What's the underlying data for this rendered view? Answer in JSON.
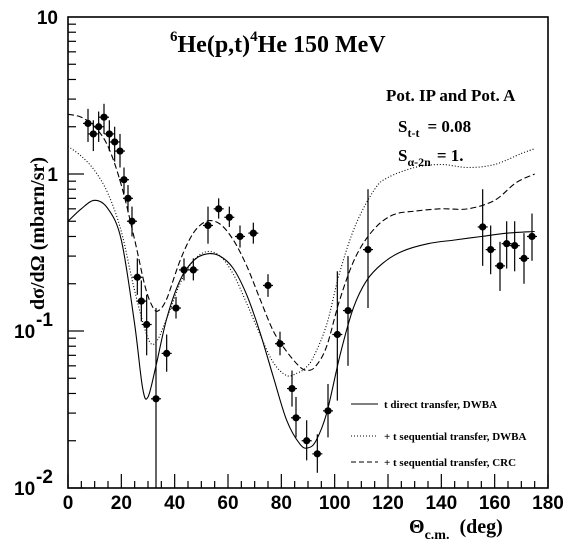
{
  "chart_data": {
    "type": "scatter",
    "title": {
      "pre": "6",
      "post": "He(p,t)",
      "pre2": "4",
      "tail": "He  150 MeV"
    },
    "xlabel": {
      "main": "Θ",
      "sub": "c.m.",
      "units": "(deg)"
    },
    "ylabel": "dσ/dΩ  (mbarn/sr)",
    "xlim": [
      0,
      180
    ],
    "ylim": [
      0.01,
      10
    ],
    "yscale": "log",
    "x_ticks": [
      "0",
      "20",
      "40",
      "60",
      "80",
      "100",
      "120",
      "140",
      "160",
      "180"
    ],
    "y_ticks": [
      {
        "value": 10,
        "main": "10",
        "exp": ""
      },
      {
        "value": 1,
        "main": "1",
        "exp": ""
      },
      {
        "value": 0.1,
        "main": "10",
        "exp": "-1"
      },
      {
        "value": 0.01,
        "main": "10",
        "exp": "-2"
      }
    ],
    "annotations": {
      "line1": "Pot. IP and Pot. A",
      "s1_main": "S",
      "s1_sub": "t-t",
      "s1_val": "=  0.08",
      "s2_main": "S",
      "s2_sub": "α-2n",
      "s2_val": "=  1."
    },
    "legend": [
      {
        "label": "t direct transfer, DWBA",
        "dash": "solid"
      },
      {
        "label": "+ t sequential transfer, DWBA",
        "dash": "dotted"
      },
      {
        "label": "+ t sequential transfer, CRC",
        "dash": "dashed"
      }
    ],
    "legend_position": "lower-right",
    "points": [
      {
        "x": 7.5,
        "y": 2.1,
        "lo": 1.6,
        "hi": 2.6
      },
      {
        "x": 9.5,
        "y": 1.8,
        "lo": 1.4,
        "hi": 2.2
      },
      {
        "x": 11.5,
        "y": 2.0,
        "lo": 1.6,
        "hi": 2.5
      },
      {
        "x": 13.5,
        "y": 2.3,
        "lo": 1.8,
        "hi": 2.8
      },
      {
        "x": 15.5,
        "y": 1.8,
        "lo": 1.4,
        "hi": 2.2
      },
      {
        "x": 17.5,
        "y": 1.6,
        "lo": 1.2,
        "hi": 2.0
      },
      {
        "x": 19.5,
        "y": 1.4,
        "lo": 1.1,
        "hi": 1.8
      },
      {
        "x": 21,
        "y": 0.92,
        "lo": 0.75,
        "hi": 1.1
      },
      {
        "x": 22.5,
        "y": 0.7,
        "lo": 0.57,
        "hi": 0.85
      },
      {
        "x": 24,
        "y": 0.5,
        "lo": 0.4,
        "hi": 0.62
      },
      {
        "x": 26,
        "y": 0.22,
        "lo": 0.17,
        "hi": 0.29
      },
      {
        "x": 27.5,
        "y": 0.155,
        "lo": 0.115,
        "hi": 0.21
      },
      {
        "x": 29.5,
        "y": 0.11,
        "lo": 0.07,
        "hi": 0.17
      },
      {
        "x": 33,
        "y": 0.037,
        "lo": 0.0095,
        "hi": 0.14
      },
      {
        "x": 37,
        "y": 0.072,
        "lo": 0.055,
        "hi": 0.095
      },
      {
        "x": 40.5,
        "y": 0.14,
        "lo": 0.12,
        "hi": 0.165
      },
      {
        "x": 43.5,
        "y": 0.245,
        "lo": 0.21,
        "hi": 0.29
      },
      {
        "x": 47,
        "y": 0.245,
        "lo": 0.21,
        "hi": 0.29
      },
      {
        "x": 52.5,
        "y": 0.47,
        "lo": 0.36,
        "hi": 0.62
      },
      {
        "x": 56.5,
        "y": 0.6,
        "lo": 0.52,
        "hi": 0.7
      },
      {
        "x": 60.5,
        "y": 0.53,
        "lo": 0.46,
        "hi": 0.62
      },
      {
        "x": 64.5,
        "y": 0.4,
        "lo": 0.34,
        "hi": 0.47
      },
      {
        "x": 69.5,
        "y": 0.42,
        "lo": 0.36,
        "hi": 0.49
      },
      {
        "x": 75,
        "y": 0.195,
        "lo": 0.165,
        "hi": 0.23
      },
      {
        "x": 79.5,
        "y": 0.083,
        "lo": 0.07,
        "hi": 0.099
      },
      {
        "x": 84,
        "y": 0.043,
        "lo": 0.033,
        "hi": 0.056
      },
      {
        "x": 85.5,
        "y": 0.028,
        "lo": 0.021,
        "hi": 0.038
      },
      {
        "x": 89.5,
        "y": 0.02,
        "lo": 0.015,
        "hi": 0.027
      },
      {
        "x": 93.5,
        "y": 0.0165,
        "lo": 0.0125,
        "hi": 0.022
      },
      {
        "x": 97.5,
        "y": 0.031,
        "lo": 0.021,
        "hi": 0.046
      },
      {
        "x": 101,
        "y": 0.095,
        "lo": 0.036,
        "hi": 0.24
      },
      {
        "x": 105,
        "y": 0.135,
        "lo": 0.06,
        "hi": 0.3
      },
      {
        "x": 112.5,
        "y": 0.33,
        "lo": 0.14,
        "hi": 0.8
      },
      {
        "x": 155.5,
        "y": 0.46,
        "lo": 0.26,
        "hi": 0.8
      },
      {
        "x": 158.5,
        "y": 0.33,
        "lo": 0.23,
        "hi": 0.47
      },
      {
        "x": 162,
        "y": 0.26,
        "lo": 0.18,
        "hi": 0.37
      },
      {
        "x": 164.5,
        "y": 0.36,
        "lo": 0.25,
        "hi": 0.5
      },
      {
        "x": 167.5,
        "y": 0.35,
        "lo": 0.24,
        "hi": 0.5
      },
      {
        "x": 171,
        "y": 0.29,
        "lo": 0.2,
        "hi": 0.42
      },
      {
        "x": 174,
        "y": 0.4,
        "lo": 0.28,
        "hi": 0.56
      }
    ],
    "series": [
      {
        "dash": "solid",
        "x": [
          0,
          5,
          10,
          15,
          20,
          25,
          28,
          30,
          33,
          37,
          42,
          47,
          52,
          57,
          62,
          67,
          72,
          77,
          82,
          87,
          90,
          93,
          97,
          102,
          107,
          112,
          118,
          125,
          135,
          145,
          155,
          165,
          175
        ],
        "y": [
          0.5,
          0.6,
          0.68,
          0.6,
          0.38,
          0.11,
          0.043,
          0.038,
          0.06,
          0.12,
          0.21,
          0.28,
          0.31,
          0.3,
          0.25,
          0.17,
          0.098,
          0.051,
          0.027,
          0.019,
          0.018,
          0.02,
          0.03,
          0.07,
          0.14,
          0.21,
          0.27,
          0.32,
          0.36,
          0.38,
          0.4,
          0.42,
          0.43
        ]
      },
      {
        "dash": "dotted",
        "x": [
          0,
          5,
          10,
          15,
          20,
          25,
          30,
          33,
          37,
          42,
          47,
          52,
          57,
          62,
          67,
          72,
          77,
          82,
          86,
          89,
          92,
          97,
          102,
          108,
          115,
          120,
          130,
          140,
          150,
          160,
          170,
          175
        ],
        "y": [
          1.5,
          1.3,
          1.05,
          0.75,
          0.43,
          0.18,
          0.09,
          0.085,
          0.12,
          0.2,
          0.28,
          0.32,
          0.3,
          0.23,
          0.15,
          0.095,
          0.063,
          0.052,
          0.054,
          0.058,
          0.068,
          0.11,
          0.24,
          0.48,
          0.8,
          0.95,
          1.1,
          1.15,
          1.1,
          1.15,
          1.35,
          1.45
        ]
      },
      {
        "dash": "dashed",
        "x": [
          0,
          5,
          10,
          15,
          20,
          25,
          29,
          32,
          34,
          37,
          42,
          47,
          52,
          57,
          62,
          67,
          72,
          77,
          82,
          87,
          90,
          93,
          97,
          102,
          108,
          115,
          122,
          130,
          140,
          150,
          160,
          168,
          175
        ],
        "y": [
          2.4,
          2.3,
          2.0,
          1.5,
          0.85,
          0.38,
          0.19,
          0.14,
          0.135,
          0.16,
          0.28,
          0.42,
          0.5,
          0.48,
          0.38,
          0.26,
          0.16,
          0.1,
          0.074,
          0.059,
          0.056,
          0.06,
          0.08,
          0.16,
          0.3,
          0.45,
          0.55,
          0.58,
          0.6,
          0.6,
          0.68,
          0.88,
          1.0
        ]
      }
    ]
  }
}
